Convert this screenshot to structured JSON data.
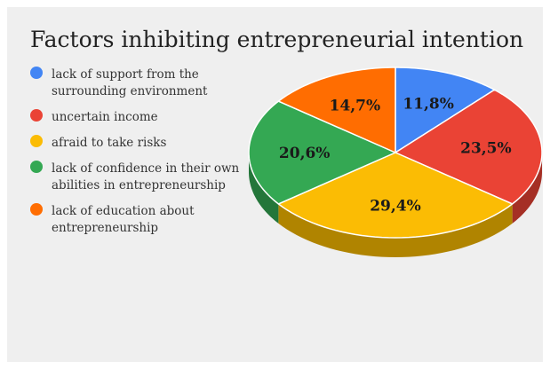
{
  "chart_data": {
    "type": "pie",
    "title": "Factors inhibiting entrepreneurial intention",
    "legend_position": "left",
    "slices": [
      {
        "label": "lack of support from the surrounding environment",
        "value": 11.8,
        "display": "11,8%",
        "color": "#4285f4",
        "side_color": "#2f5fb3"
      },
      {
        "label": "uncertain income",
        "value": 23.5,
        "display": "23,5%",
        "color": "#ea4335",
        "side_color": "#a52f25"
      },
      {
        "label": "afraid to take risks",
        "value": 29.4,
        "display": "29,4%",
        "color": "#fbbc04",
        "side_color": "#b08400"
      },
      {
        "label": "lack of confidence in their own abilities in entrepreneurship",
        "value": 20.6,
        "display": "20,6%",
        "color": "#34a853",
        "side_color": "#24763a"
      },
      {
        "label": "lack of education about entrepreneurship",
        "value": 14.7,
        "display": "14,7%",
        "color": "#ff6d01",
        "side_color": "#b34c00"
      }
    ]
  }
}
